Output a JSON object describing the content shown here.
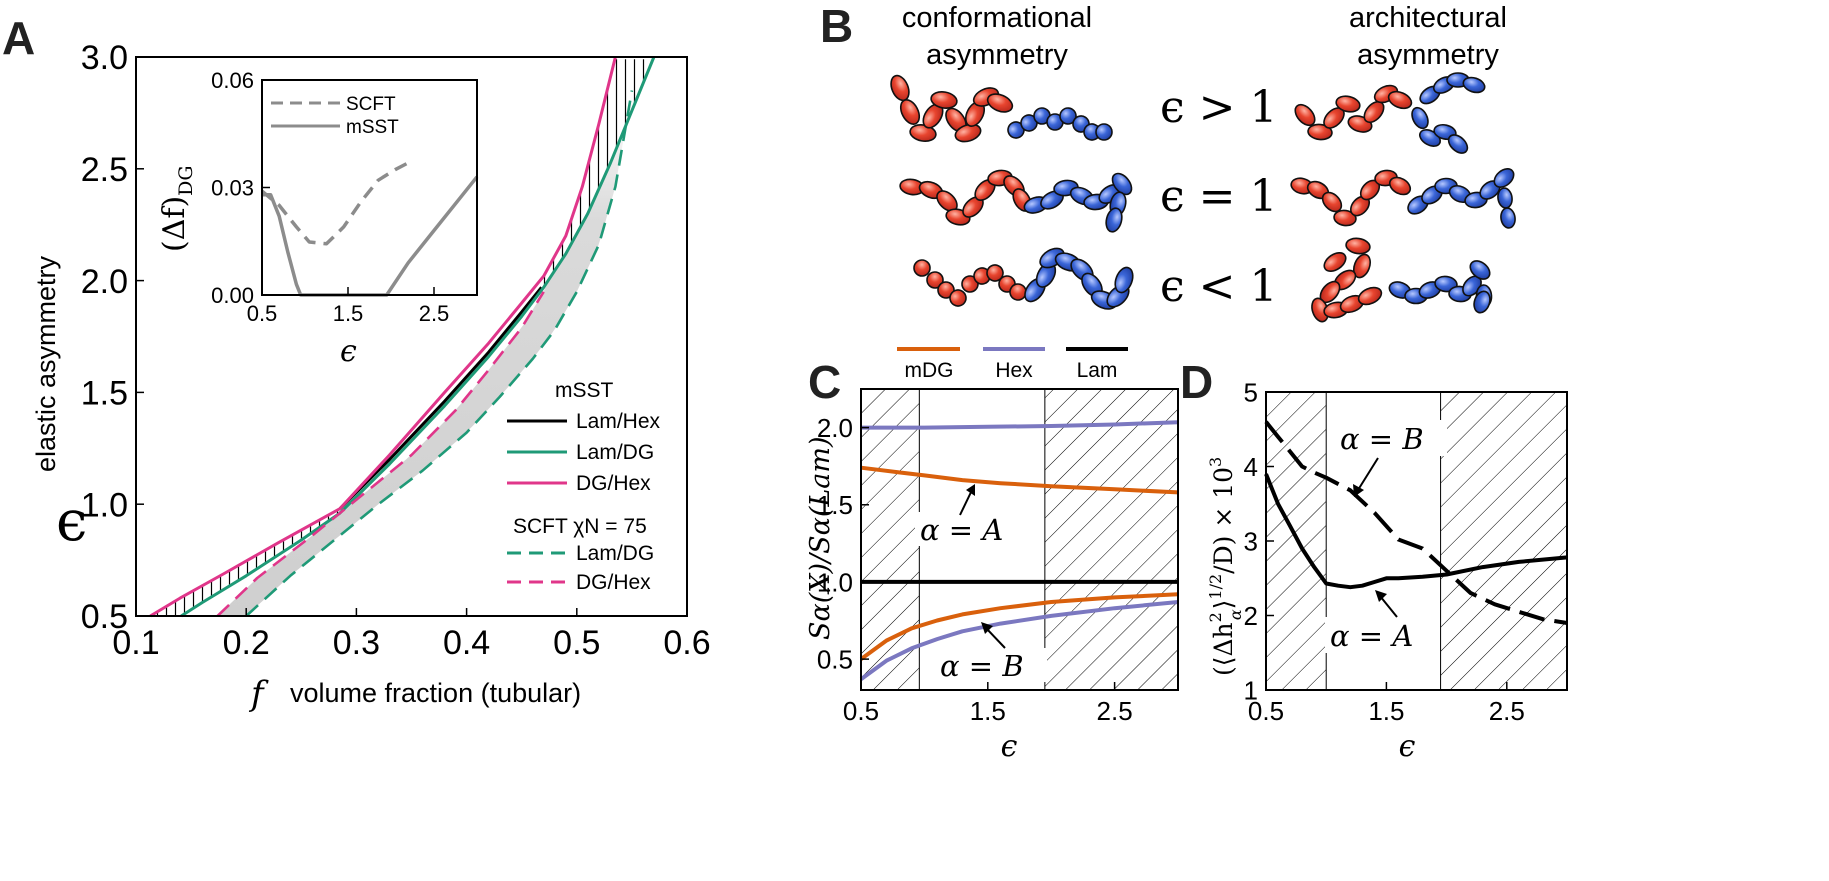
{
  "panels": {
    "A": {
      "letter": "A"
    },
    "B": {
      "letter": "B"
    },
    "C": {
      "letter": "C"
    },
    "D": {
      "letter": "D"
    }
  },
  "colors": {
    "black": "#000000",
    "green": "#1f9a77",
    "pink": "#e0368a",
    "orange": "#d9600c",
    "purple": "#7b78c0",
    "gray": "#8c8c8c",
    "red_bead": "#e8452f",
    "blue_bead": "#3b66d8",
    "band": "#d6d6d6"
  },
  "chart_data": [
    {
      "id": "A",
      "type": "line",
      "xlabel_symbol": "f",
      "xlabel": "volume fraction (tubular)",
      "ylabel_symbol": "ϵ",
      "ylabel": "elastic asymmetry",
      "xlim": [
        0.1,
        0.6
      ],
      "ylim": [
        0.5,
        3.0
      ],
      "xticks": [
        "0.1",
        "0.2",
        "0.3",
        "0.4",
        "0.5",
        "0.6"
      ],
      "yticks": [
        "0.5",
        "1.0",
        "1.5",
        "2.0",
        "2.5",
        "3.0"
      ],
      "legend": {
        "title_msst": "mSST",
        "title_scft": "SCFT χN = 75",
        "items": [
          "Lam/Hex",
          "Lam/DG",
          "DG/Hex",
          "Lam/DG",
          "DG/Hex"
        ]
      },
      "series": [
        {
          "name": "Lam/Hex",
          "method": "mSST",
          "style": "solid",
          "color": "black",
          "x": [
            0.285,
            0.33,
            0.38,
            0.42,
            0.45,
            0.468
          ],
          "y": [
            0.98,
            1.2,
            1.46,
            1.68,
            1.86,
            1.97
          ]
        },
        {
          "name": "Lam/DG",
          "method": "mSST",
          "style": "solid",
          "color": "green",
          "x": [
            0.141,
            0.16,
            0.2,
            0.25,
            0.285,
            0.33,
            0.38,
            0.42,
            0.45,
            0.47,
            0.49,
            0.51,
            0.53,
            0.55,
            0.57
          ],
          "y": [
            0.5,
            0.56,
            0.68,
            0.84,
            0.96,
            1.18,
            1.44,
            1.66,
            1.84,
            1.97,
            2.12,
            2.3,
            2.52,
            2.76,
            3.0
          ]
        },
        {
          "name": "DG/Hex",
          "method": "mSST",
          "style": "solid",
          "color": "pink",
          "x": [
            0.113,
            0.14,
            0.18,
            0.23,
            0.285,
            0.33,
            0.38,
            0.42,
            0.45,
            0.47,
            0.49,
            0.505,
            0.52,
            0.535
          ],
          "y": [
            0.5,
            0.58,
            0.69,
            0.83,
            0.98,
            1.22,
            1.5,
            1.72,
            1.9,
            2.02,
            2.2,
            2.42,
            2.7,
            3.0
          ]
        },
        {
          "name": "Lam/DG",
          "method": "SCFT",
          "style": "dashed",
          "color": "green",
          "x": [
            0.2,
            0.24,
            0.28,
            0.32,
            0.36,
            0.4,
            0.43,
            0.46,
            0.48,
            0.5,
            0.52,
            0.535,
            0.55
          ],
          "y": [
            0.5,
            0.68,
            0.84,
            1.0,
            1.15,
            1.32,
            1.48,
            1.65,
            1.78,
            1.95,
            2.16,
            2.42,
            2.85
          ]
        },
        {
          "name": "DG/Hex",
          "method": "SCFT",
          "style": "dashed",
          "color": "pink",
          "x": [
            0.174,
            0.21,
            0.26,
            0.31,
            0.35,
            0.39,
            0.42,
            0.45,
            0.47
          ],
          "y": [
            0.5,
            0.67,
            0.86,
            1.06,
            1.22,
            1.42,
            1.6,
            1.79,
            1.95
          ]
        }
      ]
    },
    {
      "id": "A-inset",
      "type": "line",
      "xlabel": "ϵ",
      "ylabel": "(Δf)DG",
      "ylabel_main": "(Δf)",
      "ylabel_sub": "DG",
      "xlim": [
        0.5,
        3.0
      ],
      "ylim": [
        0.0,
        0.06
      ],
      "xticks": [
        "0.5",
        "1.5",
        "2.5"
      ],
      "yticks": [
        "0.00",
        "0.03",
        "0.06"
      ],
      "series": [
        {
          "name": "SCFT",
          "style": "dashed",
          "color": "gray",
          "x": [
            0.5,
            0.7,
            0.9,
            1.05,
            1.25,
            1.45,
            1.65,
            1.85,
            2.05,
            2.25
          ],
          "y": [
            0.029,
            0.025,
            0.019,
            0.0148,
            0.0143,
            0.019,
            0.026,
            0.032,
            0.035,
            0.0375
          ]
        },
        {
          "name": "mSST",
          "style": "solid",
          "color": "gray",
          "x": [
            0.5,
            0.6,
            0.7,
            0.8,
            0.9,
            0.95,
            1.9,
            1.95,
            2.2,
            2.5,
            2.8,
            3.0
          ],
          "y": [
            0.028,
            0.028,
            0.022,
            0.012,
            0.003,
            0.0,
            0.0,
            0.0,
            0.009,
            0.018,
            0.027,
            0.033
          ]
        }
      ]
    },
    {
      "id": "B",
      "type": "diagram",
      "column_left": [
        "conformational",
        "asymmetry"
      ],
      "column_right": [
        "architectural",
        "asymmetry"
      ],
      "rows": [
        "ϵ > 1",
        "ϵ = 1",
        "ϵ < 1"
      ]
    },
    {
      "id": "C",
      "type": "line",
      "xlabel": "ϵ",
      "ylabel": "Sα(X)/Sα(Lam)",
      "xlim": [
        0.5,
        3.0
      ],
      "ylim": [
        0.3,
        2.25
      ],
      "xticks": [
        "0.5",
        "1.5",
        "2.5"
      ],
      "yticks": [
        "0.5",
        "1.0",
        "1.5",
        "2.0"
      ],
      "legend_items": [
        "mDG",
        "Hex",
        "Lam"
      ],
      "annotations": [
        "α = A",
        "α = B"
      ],
      "hatched_ranges": [
        [
          0.5,
          0.96
        ],
        [
          1.95,
          3.0
        ]
      ],
      "series": [
        {
          "name": "Hex",
          "alpha": "A",
          "color": "purple",
          "x": [
            0.5,
            1.0,
            1.5,
            2.0,
            2.5,
            3.0
          ],
          "y": [
            2.0,
            2.0,
            2.005,
            2.01,
            2.02,
            2.035
          ]
        },
        {
          "name": "mDG",
          "alpha": "A",
          "color": "orange",
          "x": [
            0.5,
            0.8,
            1.0,
            1.3,
            1.6,
            2.0,
            2.5,
            3.0
          ],
          "y": [
            1.74,
            1.71,
            1.69,
            1.66,
            1.64,
            1.62,
            1.6,
            1.58
          ]
        },
        {
          "name": "Lam",
          "alpha": "A,B",
          "color": "black",
          "x": [
            0.5,
            3.0
          ],
          "y": [
            1.0,
            1.0
          ]
        },
        {
          "name": "mDG",
          "alpha": "B",
          "color": "orange",
          "x": [
            0.5,
            0.7,
            0.9,
            1.1,
            1.3,
            1.6,
            2.0,
            2.5,
            3.0
          ],
          "y": [
            0.5,
            0.62,
            0.7,
            0.75,
            0.79,
            0.83,
            0.87,
            0.9,
            0.92
          ]
        },
        {
          "name": "Hex",
          "alpha": "B",
          "color": "purple",
          "x": [
            0.5,
            0.7,
            0.9,
            1.1,
            1.3,
            1.6,
            2.0,
            2.5,
            3.0
          ],
          "y": [
            0.37,
            0.49,
            0.57,
            0.63,
            0.68,
            0.73,
            0.78,
            0.83,
            0.87
          ]
        }
      ]
    },
    {
      "id": "D",
      "type": "line",
      "xlabel": "ϵ",
      "ylabel": "(⟨Δh²α⟩^1/2/D) × 10³",
      "ylabel_pre": "(⟨Δh",
      "ylabel_sup": "2",
      "ylabel_sub": "α",
      "ylabel_mid": "⟩",
      "ylabel_sup2": "1/2",
      "ylabel_post": "/D) × 10",
      "ylabel_sup3": "3",
      "xlim": [
        0.5,
        3.0
      ],
      "ylim": [
        1.0,
        5.0
      ],
      "xticks": [
        "0.5",
        "1.5",
        "2.5"
      ],
      "yticks": [
        "1",
        "2",
        "3",
        "4",
        "5"
      ],
      "annotations": [
        "α = B",
        "α = A"
      ],
      "hatched_ranges": [
        [
          0.5,
          1.0
        ],
        [
          1.95,
          3.0
        ]
      ],
      "series": [
        {
          "name": "α = B",
          "style": "dashed",
          "color": "black",
          "x": [
            0.5,
            0.6,
            0.7,
            0.8,
            0.9,
            1.0,
            1.2,
            1.4,
            1.6,
            1.8,
            2.0,
            2.2,
            2.4,
            2.6,
            2.8,
            3.0
          ],
          "y": [
            4.6,
            4.4,
            4.2,
            4.0,
            3.92,
            3.85,
            3.68,
            3.38,
            3.02,
            2.9,
            2.6,
            2.3,
            2.15,
            2.05,
            1.95,
            1.9
          ]
        },
        {
          "name": "α = A",
          "style": "solid",
          "color": "black",
          "x": [
            0.5,
            0.6,
            0.7,
            0.8,
            0.9,
            1.0,
            1.1,
            1.2,
            1.3,
            1.4,
            1.5,
            1.6,
            1.8,
            2.0,
            2.3,
            2.6,
            3.0
          ],
          "y": [
            3.9,
            3.5,
            3.2,
            2.9,
            2.65,
            2.43,
            2.4,
            2.38,
            2.4,
            2.45,
            2.5,
            2.5,
            2.52,
            2.55,
            2.65,
            2.72,
            2.78
          ]
        }
      ]
    }
  ]
}
